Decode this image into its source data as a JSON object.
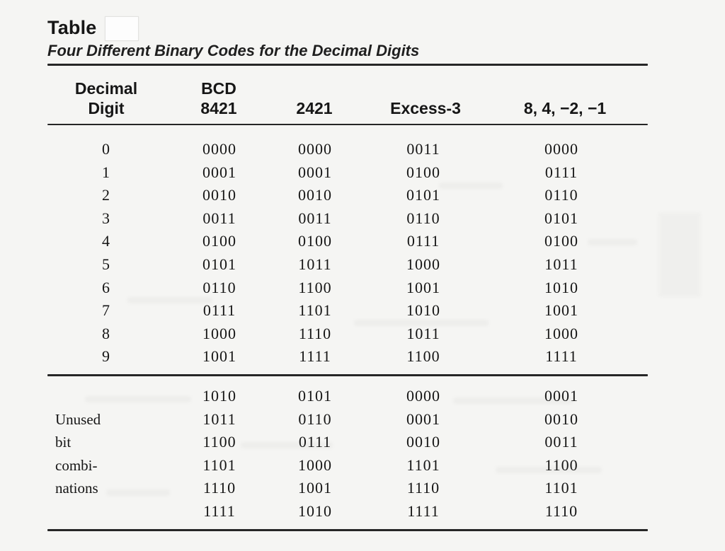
{
  "page": {
    "background": "#f5f5f3",
    "text_color": "#1c1c1c",
    "rule_color": "#262626"
  },
  "header": {
    "title": "Table",
    "table_number": "",
    "subtitle": "Four Different Binary Codes for the Decimal Digits"
  },
  "table": {
    "columns": [
      {
        "line1": "Decimal",
        "line2": "Digit"
      },
      {
        "line1": "BCD",
        "line2": "8421"
      },
      {
        "line1": "",
        "line2": "2421"
      },
      {
        "line1": "",
        "line2": "Excess-3"
      },
      {
        "line1": "",
        "line2": "8, 4, −2, −1"
      }
    ],
    "digit_rows": [
      {
        "digit": "0",
        "bcd_8421": "0000",
        "code_2421": "0000",
        "excess_3": "0011",
        "code_84m2m1": "0000"
      },
      {
        "digit": "1",
        "bcd_8421": "0001",
        "code_2421": "0001",
        "excess_3": "0100",
        "code_84m2m1": "0111"
      },
      {
        "digit": "2",
        "bcd_8421": "0010",
        "code_2421": "0010",
        "excess_3": "0101",
        "code_84m2m1": "0110"
      },
      {
        "digit": "3",
        "bcd_8421": "0011",
        "code_2421": "0011",
        "excess_3": "0110",
        "code_84m2m1": "0101"
      },
      {
        "digit": "4",
        "bcd_8421": "0100",
        "code_2421": "0100",
        "excess_3": "0111",
        "code_84m2m1": "0100"
      },
      {
        "digit": "5",
        "bcd_8421": "0101",
        "code_2421": "1011",
        "excess_3": "1000",
        "code_84m2m1": "1011"
      },
      {
        "digit": "6",
        "bcd_8421": "0110",
        "code_2421": "1100",
        "excess_3": "1001",
        "code_84m2m1": "1010"
      },
      {
        "digit": "7",
        "bcd_8421": "0111",
        "code_2421": "1101",
        "excess_3": "1010",
        "code_84m2m1": "1001"
      },
      {
        "digit": "8",
        "bcd_8421": "1000",
        "code_2421": "1110",
        "excess_3": "1011",
        "code_84m2m1": "1000"
      },
      {
        "digit": "9",
        "bcd_8421": "1001",
        "code_2421": "1111",
        "excess_3": "1100",
        "code_84m2m1": "1111"
      }
    ],
    "unused_rows": [
      {
        "label": "",
        "bcd_8421": "1010",
        "code_2421": "0101",
        "excess_3": "0000",
        "code_84m2m1": "0001"
      },
      {
        "label": "Unused",
        "bcd_8421": "1011",
        "code_2421": "0110",
        "excess_3": "0001",
        "code_84m2m1": "0010"
      },
      {
        "label": "bit",
        "bcd_8421": "1100",
        "code_2421": "0111",
        "excess_3": "0010",
        "code_84m2m1": "0011"
      },
      {
        "label": "combi-",
        "bcd_8421": "1101",
        "code_2421": "1000",
        "excess_3": "1101",
        "code_84m2m1": "1100"
      },
      {
        "label": "nations",
        "bcd_8421": "1110",
        "code_2421": "1001",
        "excess_3": "1110",
        "code_84m2m1": "1101"
      },
      {
        "label": "",
        "bcd_8421": "1111",
        "code_2421": "1010",
        "excess_3": "1111",
        "code_84m2m1": "1110"
      }
    ]
  }
}
